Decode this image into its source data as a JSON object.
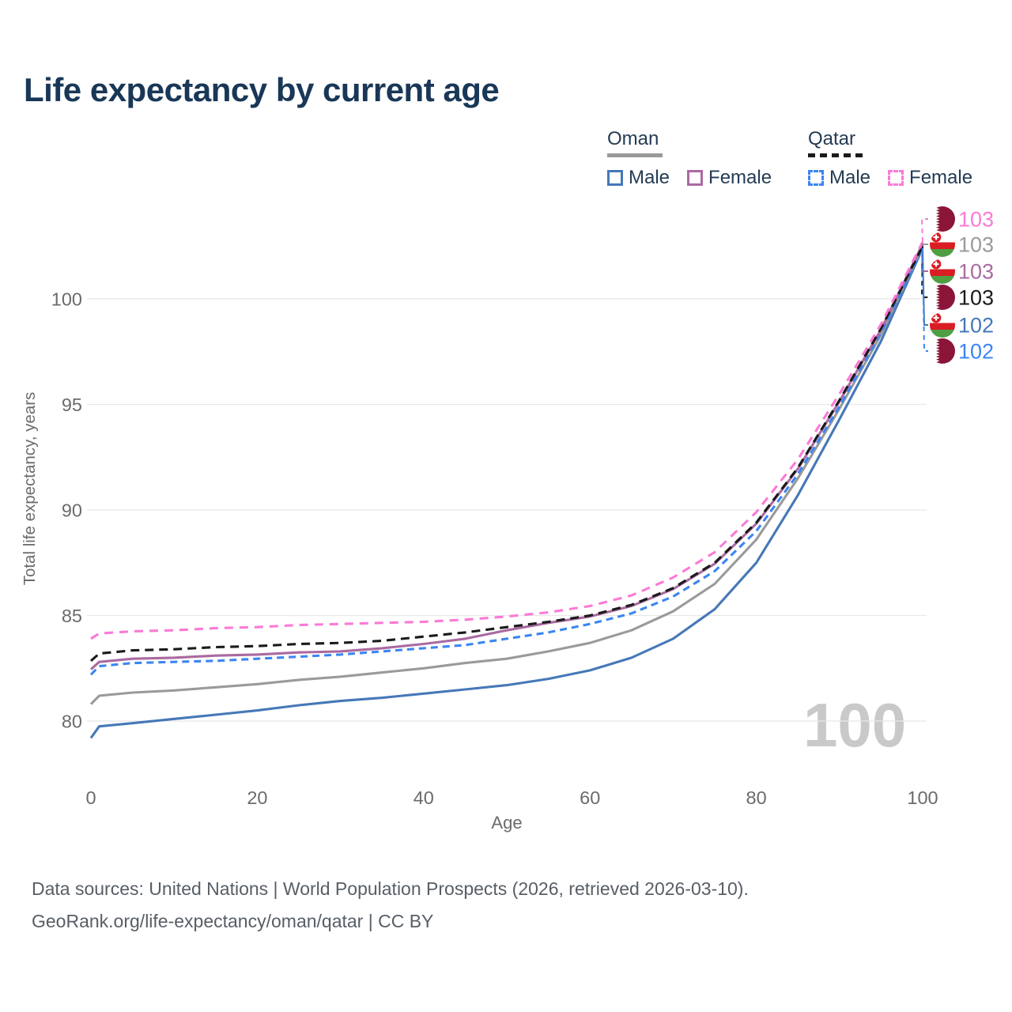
{
  "title": "Life expectancy by current age",
  "legend": {
    "groups": [
      {
        "label": "Oman",
        "underline_style": "solid",
        "underline_color": "#9a9a9a",
        "items": [
          {
            "label": "Male",
            "color": "#4678b8",
            "dashed": false
          },
          {
            "label": "Female",
            "color": "#aa6aa0",
            "dashed": false
          }
        ]
      },
      {
        "label": "Qatar",
        "underline_style": "dashed",
        "underline_color": "#1a1a1a",
        "items": [
          {
            "label": "Male",
            "color": "#3b86f2",
            "dashed": true
          },
          {
            "label": "Female",
            "color": "#fb7ad6",
            "dashed": true
          }
        ]
      }
    ]
  },
  "chart_data": {
    "type": "line",
    "title": "Life expectancy by current age",
    "xlabel": "Age",
    "ylabel": "Total life expectancy, years",
    "xlim": [
      0,
      100
    ],
    "ylim": [
      78.5,
      103.5
    ],
    "xticks": [
      0,
      20,
      40,
      60,
      80,
      100
    ],
    "yticks": [
      80,
      85,
      90,
      95,
      100
    ],
    "grid": "horizontal",
    "legend_position": "top-right",
    "age_indicator": "100",
    "x": [
      0,
      1,
      5,
      10,
      15,
      20,
      25,
      30,
      35,
      40,
      45,
      50,
      55,
      60,
      65,
      70,
      75,
      80,
      85,
      90,
      95,
      100
    ],
    "series": [
      {
        "id": "qatar-female",
        "name": "Qatar Female",
        "country": "Qatar",
        "sex": "Female",
        "flag": "qatar",
        "color": "#fb7ad6",
        "dashed": true,
        "dash": "11 8",
        "end_label": "103",
        "values": [
          83.9,
          84.15,
          84.25,
          84.3,
          84.4,
          84.45,
          84.55,
          84.6,
          84.65,
          84.7,
          84.8,
          84.95,
          85.15,
          85.45,
          85.95,
          86.8,
          88.0,
          89.9,
          92.4,
          95.5,
          98.8,
          102.7
        ]
      },
      {
        "id": "oman-total",
        "name": "Oman",
        "country": "Oman",
        "sex": "Both",
        "flag": "oman",
        "color": "#9a9a9a",
        "dashed": false,
        "dash": "",
        "end_label": "103",
        "values": [
          80.8,
          81.2,
          81.35,
          81.45,
          81.6,
          81.75,
          81.95,
          82.1,
          82.3,
          82.5,
          82.75,
          82.95,
          83.3,
          83.7,
          84.3,
          85.2,
          86.5,
          88.6,
          91.5,
          94.8,
          98.3,
          102.5
        ]
      },
      {
        "id": "oman-female",
        "name": "Oman Female",
        "country": "Oman",
        "sex": "Female",
        "flag": "oman",
        "color": "#aa6aa0",
        "dashed": false,
        "dash": "",
        "end_label": "103",
        "values": [
          82.45,
          82.8,
          82.95,
          83.0,
          83.1,
          83.15,
          83.25,
          83.3,
          83.45,
          83.65,
          83.9,
          84.3,
          84.65,
          84.95,
          85.45,
          86.25,
          87.45,
          89.35,
          91.95,
          95.15,
          98.55,
          102.6
        ]
      },
      {
        "id": "qatar-total",
        "name": "Qatar",
        "country": "Qatar",
        "sex": "Both",
        "flag": "qatar",
        "color": "#1a1a1a",
        "dashed": true,
        "dash": "11 7",
        "end_label": "103",
        "values": [
          82.85,
          83.2,
          83.35,
          83.4,
          83.5,
          83.55,
          83.65,
          83.7,
          83.8,
          84.0,
          84.2,
          84.45,
          84.7,
          85.0,
          85.5,
          86.3,
          87.5,
          89.4,
          92.0,
          95.2,
          98.6,
          102.5
        ]
      },
      {
        "id": "oman-male",
        "name": "Oman Male",
        "country": "Oman",
        "sex": "Male",
        "flag": "oman",
        "color": "#4678b8",
        "dashed": false,
        "dash": "",
        "end_label": "102",
        "values": [
          79.2,
          79.75,
          79.9,
          80.1,
          80.3,
          80.5,
          80.75,
          80.95,
          81.1,
          81.3,
          81.5,
          81.7,
          82.0,
          82.4,
          83.0,
          83.9,
          85.3,
          87.5,
          90.7,
          94.3,
          98.0,
          102.4
        ]
      },
      {
        "id": "qatar-male",
        "name": "Qatar Male",
        "country": "Qatar",
        "sex": "Male",
        "flag": "qatar",
        "color": "#3b86f2",
        "dashed": true,
        "dash": "9 6",
        "end_label": "102",
        "values": [
          82.2,
          82.6,
          82.75,
          82.8,
          82.85,
          82.95,
          83.05,
          83.15,
          83.3,
          83.45,
          83.6,
          83.9,
          84.2,
          84.6,
          85.1,
          85.9,
          87.1,
          89.0,
          91.7,
          94.9,
          98.4,
          102.4
        ]
      }
    ]
  },
  "footer": {
    "line1": "Data sources: United Nations | World Population Prospects (2026, retrieved 2026-03-10).",
    "line2": "GeoRank.org/life-expectancy/oman/qatar | CC BY"
  }
}
